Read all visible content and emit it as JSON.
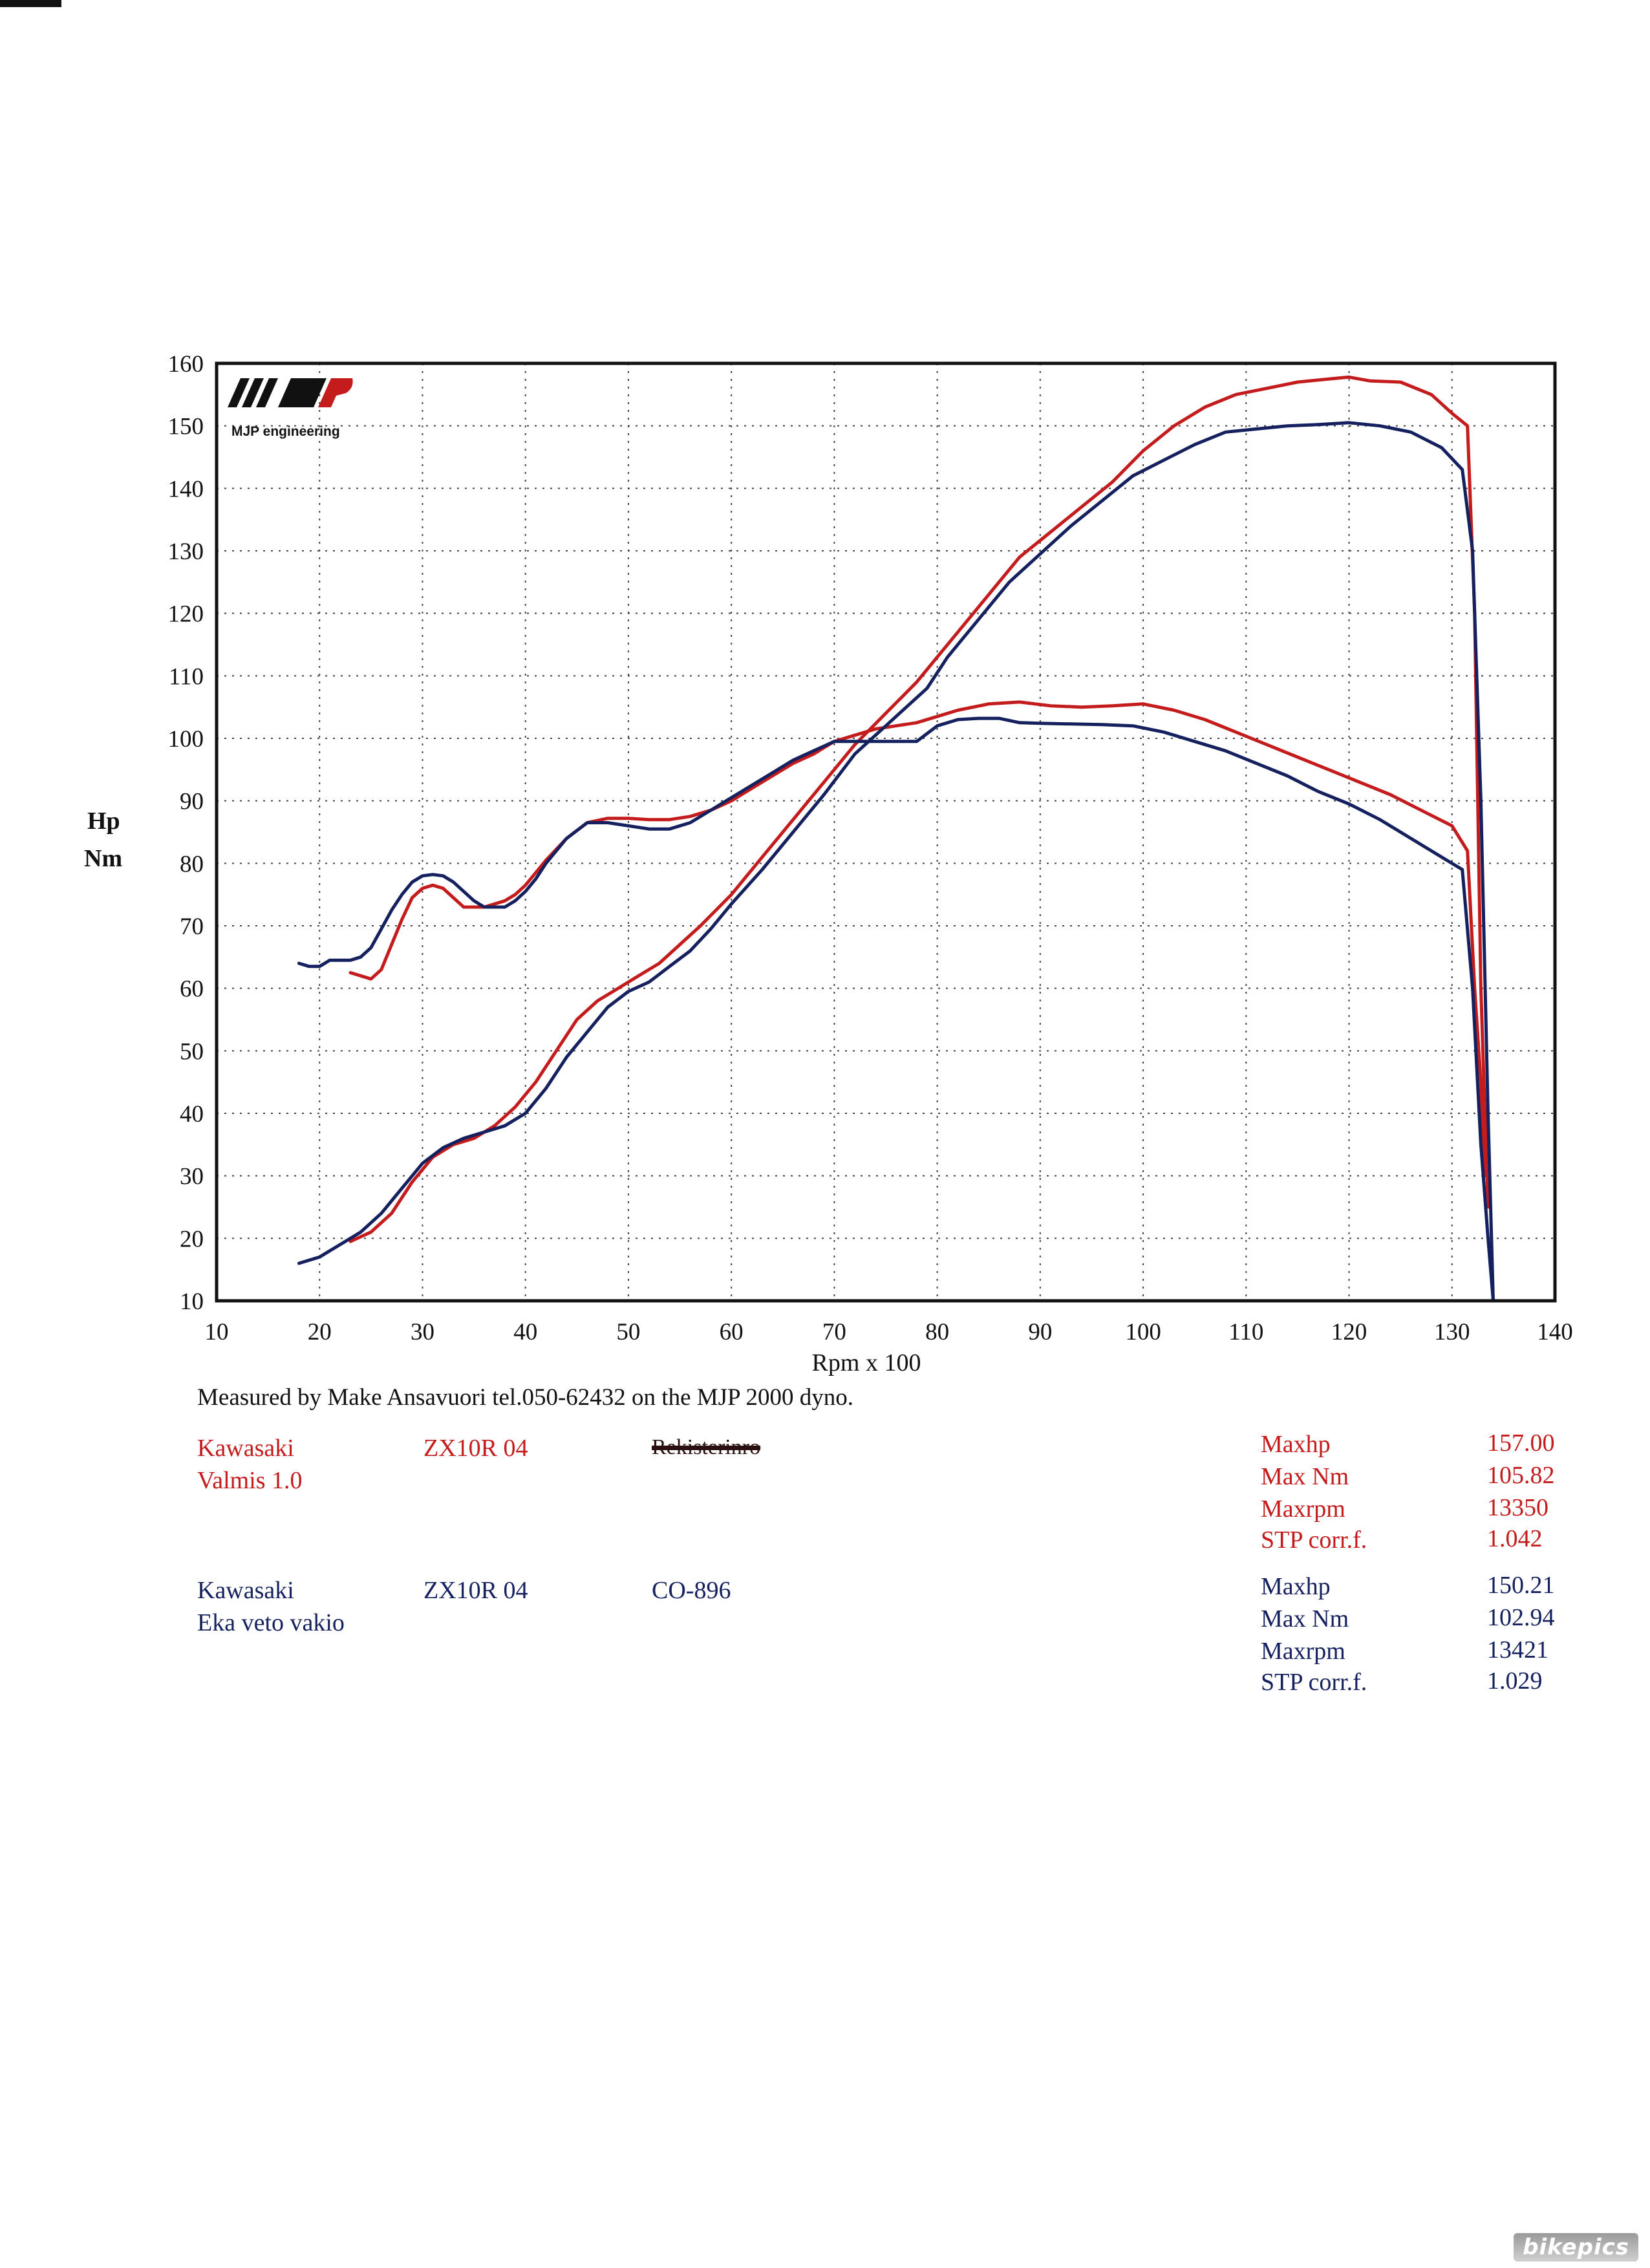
{
  "chart_data": {
    "type": "line",
    "title": "",
    "xlabel": "Rpm x 100",
    "ylabel_lines": [
      "Hp",
      "Nm"
    ],
    "xlim": [
      10,
      140
    ],
    "ylim": [
      10,
      160
    ],
    "x_ticks": [
      10,
      20,
      30,
      40,
      50,
      60,
      70,
      80,
      90,
      100,
      110,
      120,
      130,
      140
    ],
    "y_ticks": [
      10,
      20,
      30,
      40,
      50,
      60,
      70,
      80,
      90,
      100,
      110,
      120,
      130,
      140,
      150,
      160
    ],
    "grid": true,
    "logo_text": "MJP engineering",
    "series": [
      {
        "run": "red-hp",
        "color": "#c41c1c",
        "x": [
          23,
          25,
          27,
          29,
          31,
          33,
          35,
          37,
          39,
          41,
          43,
          45,
          47,
          49,
          51,
          53,
          55,
          57,
          60,
          63,
          66,
          69,
          72,
          75,
          78,
          80,
          82,
          85,
          88,
          91,
          94,
          97,
          100,
          103,
          106,
          109,
          112,
          115,
          118,
          120,
          122,
          125,
          128,
          130,
          131.5,
          132.2,
          132.8,
          133.2,
          133.5
        ],
        "y": [
          19.5,
          21,
          24,
          29,
          33,
          35,
          36,
          38,
          41,
          45,
          50,
          55,
          58,
          60,
          62,
          64,
          67,
          70,
          75,
          81,
          87,
          93,
          99,
          104,
          109,
          113,
          117,
          123,
          129,
          133,
          137,
          141,
          146,
          150,
          153,
          155,
          156,
          157,
          157.5,
          157.8,
          157.2,
          157,
          155,
          152,
          150,
          120,
          60,
          40,
          25
        ]
      },
      {
        "run": "red-nm",
        "color": "#c41c1c",
        "x": [
          23,
          24,
          25,
          26,
          27,
          28,
          29,
          30,
          31,
          32,
          33,
          34,
          35,
          36,
          37,
          38,
          39,
          40,
          41,
          42,
          44,
          46,
          48,
          50,
          52,
          54,
          56,
          58,
          60,
          62,
          64,
          66,
          68,
          70,
          72,
          74,
          76,
          78,
          80,
          82,
          85,
          88,
          91,
          94,
          97,
          100,
          103,
          106,
          109,
          112,
          115,
          118,
          121,
          124,
          127,
          130,
          131.5,
          132.2,
          132.8,
          133.2
        ],
        "y": [
          62.5,
          62,
          61.5,
          63,
          67,
          71,
          74.5,
          76,
          76.5,
          76,
          74.5,
          73,
          73,
          73,
          73.5,
          74,
          75,
          76.5,
          78.5,
          80.5,
          84,
          86.5,
          87.2,
          87.2,
          87,
          87,
          87.5,
          88.5,
          90,
          92,
          94,
          96,
          97.5,
          99.5,
          100.5,
          101.5,
          102,
          102.5,
          103.5,
          104.5,
          105.5,
          105.8,
          105.2,
          105,
          105.2,
          105.5,
          104.5,
          103,
          101,
          99,
          97,
          95,
          93,
          91,
          88.5,
          86,
          82,
          60,
          45,
          30
        ]
      },
      {
        "run": "blue-hp",
        "color": "#14215e",
        "x": [
          18,
          20,
          22,
          24,
          26,
          28,
          30,
          32,
          34,
          36,
          38,
          40,
          42,
          44,
          46,
          48,
          50,
          52,
          54,
          56,
          58,
          60,
          63,
          66,
          69,
          72,
          75,
          77,
          79,
          81,
          84,
          87,
          90,
          93,
          96,
          99,
          102,
          105,
          108,
          111,
          114,
          117,
          120,
          123,
          126,
          129,
          131,
          132,
          132.8,
          133.5,
          134
        ],
        "y": [
          16,
          17,
          19,
          21,
          24,
          28,
          32,
          34.5,
          36,
          37,
          38,
          40,
          44,
          49,
          53,
          57,
          59.5,
          61,
          63.5,
          66,
          69.5,
          73.5,
          79,
          85,
          91,
          97.5,
          102,
          105,
          108,
          113,
          119,
          125,
          129.5,
          134,
          138,
          142,
          144.5,
          147,
          149,
          149.5,
          150,
          150.2,
          150.5,
          150,
          149,
          146.5,
          143,
          130,
          90,
          40,
          10
        ]
      },
      {
        "run": "blue-nm",
        "color": "#14215e",
        "x": [
          18,
          19,
          20,
          21,
          22,
          23,
          24,
          25,
          26,
          27,
          28,
          29,
          30,
          31,
          32,
          33,
          34,
          35,
          36,
          37,
          38,
          39,
          40,
          41,
          42,
          44,
          46,
          48,
          50,
          52,
          54,
          56,
          58,
          60,
          62,
          64,
          66,
          68,
          70,
          72,
          74,
          76,
          78,
          80,
          82,
          84,
          86,
          88,
          90,
          93,
          96,
          99,
          102,
          105,
          108,
          111,
          114,
          117,
          120,
          123,
          126,
          129,
          131,
          132,
          132.8,
          133.5,
          134
        ],
        "y": [
          64,
          63.5,
          63.5,
          64.5,
          64.5,
          64.5,
          65,
          66.5,
          69.5,
          72.5,
          75,
          77,
          78,
          78.2,
          78,
          77,
          75.5,
          74,
          73,
          73,
          73,
          74,
          75.5,
          77.5,
          80,
          84,
          86.5,
          86.5,
          86,
          85.5,
          85.5,
          86.5,
          88.5,
          90.5,
          92.5,
          94.5,
          96.5,
          98,
          99.5,
          99.5,
          99.5,
          99.5,
          99.5,
          102,
          103,
          103.2,
          103.2,
          102.5,
          102.4,
          102.3,
          102.2,
          102,
          101,
          99.5,
          98,
          96,
          94,
          91.5,
          89.5,
          87,
          84,
          81,
          79,
          60,
          35,
          20,
          10
        ]
      }
    ]
  },
  "footer": {
    "measured_text": "Measured by Make Ansavuori tel.050-62432 on the MJP 2000 dyno.",
    "run1": {
      "color": "#c41c1c",
      "make": "Kawasaki",
      "desc": "Valmis 1.0",
      "model": "ZX10R 04",
      "id_struck": "Rekisterinro",
      "stats": [
        {
          "label": "Maxhp",
          "value": "157.00"
        },
        {
          "label": "Max Nm",
          "value": "105.82"
        },
        {
          "label": "Maxrpm",
          "value": "13350"
        },
        {
          "label": "STP corr.f.",
          "value": "1.042"
        }
      ]
    },
    "run2": {
      "color": "#14215e",
      "make": "Kawasaki",
      "desc": "Eka veto vakio",
      "model": "ZX10R 04",
      "id": "CO-896",
      "stats": [
        {
          "label": "Maxhp",
          "value": "150.21"
        },
        {
          "label": "Max Nm",
          "value": "102.94"
        },
        {
          "label": "Maxrpm",
          "value": "13421"
        },
        {
          "label": "STP corr.f.",
          "value": "1.029"
        }
      ]
    }
  },
  "watermark": "bikepics"
}
